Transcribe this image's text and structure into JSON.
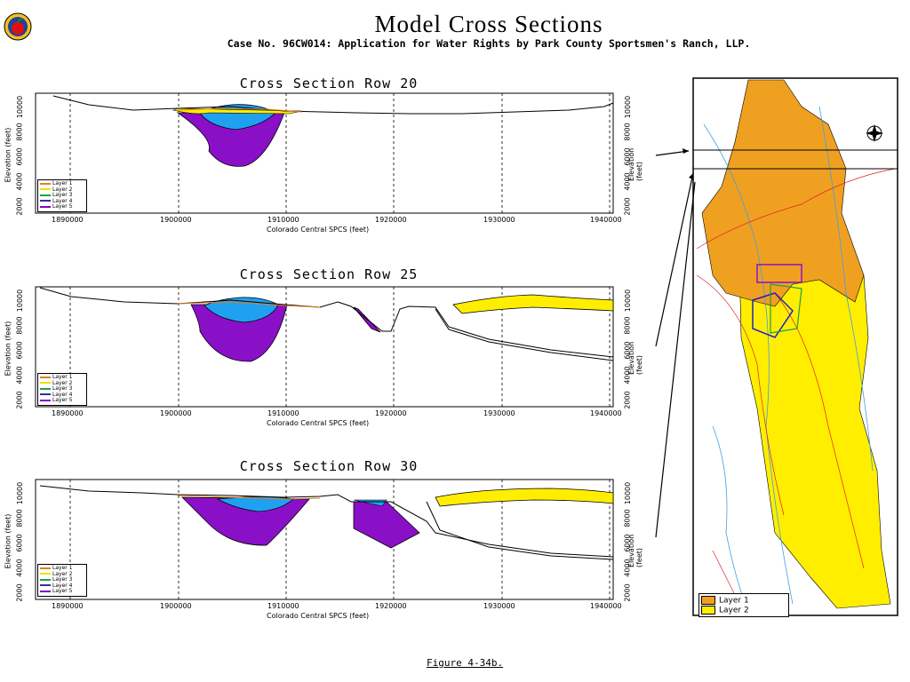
{
  "header": {
    "title": "Model Cross Sections",
    "subtitle": "Case No. 96CW014: Application for Water Rights by Park County Sportsmen's Ranch, LLP."
  },
  "sections": [
    {
      "title": "Cross Section Row 20",
      "xlabel": "Colorado Central SPCS (feet)",
      "ylabel_left": "Elevation (feet)",
      "ylabel_right": "Elevation (feet)",
      "x_ticks": [
        "1890000",
        "1900000",
        "1910000",
        "1920000",
        "1930000",
        "1940000"
      ],
      "y_ticks": [
        "2000",
        "4000",
        "6000",
        "8000",
        "10000"
      ],
      "legend": [
        "Layer 1",
        "Layer 2",
        "Layer 3",
        "Layer 4",
        "Layer 5"
      ]
    },
    {
      "title": "Cross Section Row 25",
      "xlabel": "Colorado Central SPCS (feet)",
      "ylabel_left": "Elevation (feet)",
      "ylabel_right": "Elevation (feet)",
      "x_ticks": [
        "1890000",
        "1900000",
        "1910000",
        "1920000",
        "1930000",
        "1940000"
      ],
      "y_ticks": [
        "2000",
        "4000",
        "6000",
        "8000",
        "10000"
      ],
      "legend": [
        "Layer 1",
        "Layer 2",
        "Layer 3",
        "Layer 4",
        "Layer 5"
      ]
    },
    {
      "title": "Cross Section Row 30",
      "xlabel": "Colorado Central SPCS (feet)",
      "ylabel_left": "Elevation (feet)",
      "ylabel_right": "Elevation (feet)",
      "x_ticks": [
        "1890000",
        "1900000",
        "1910000",
        "1920000",
        "1930000",
        "1940000"
      ],
      "y_ticks": [
        "2000",
        "4000",
        "6000",
        "8000",
        "10000"
      ],
      "legend": [
        "Layer 1",
        "Layer 2",
        "Layer 3",
        "Layer 4",
        "Layer 5"
      ]
    }
  ],
  "map": {
    "legend": [
      "Layer 1",
      "Layer 2"
    ],
    "colors": {
      "layer1": "#f0a020",
      "layer2": "#ffee00",
      "rivers": "#40a0e0",
      "roads": "#e02020"
    }
  },
  "layer_colors": [
    "#e08020",
    "#f0e000",
    "#20a040",
    "#3030a0",
    "#8000c0"
  ],
  "fill_colors": {
    "layer1_band": "#ffee00",
    "layer4": "#20a0f0",
    "layer5": "#8a10c8"
  },
  "caption": "Figure 4-34b.",
  "logo_icon": "apple-seal-icon"
}
